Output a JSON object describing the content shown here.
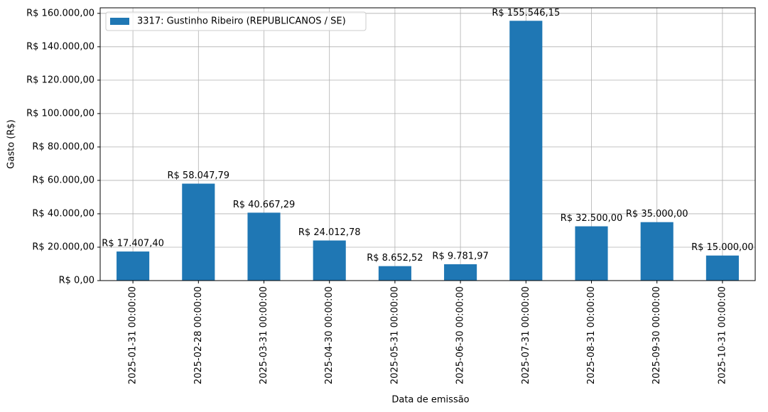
{
  "chart_data": {
    "type": "bar",
    "xlabel": "Data de emissão",
    "ylabel": "Gasto (R$)",
    "categories": [
      "2025-01-31 00:00:00",
      "2025-02-28 00:00:00",
      "2025-03-31 00:00:00",
      "2025-04-30 00:00:00",
      "2025-05-31 00:00:00",
      "2025-06-30 00:00:00",
      "2025-07-31 00:00:00",
      "2025-08-31 00:00:00",
      "2025-09-30 00:00:00",
      "2025-10-31 00:00:00"
    ],
    "series": [
      {
        "name": "3317: Gustinho Ribeiro (REPUBLICANOS / SE)",
        "color": "#1f77b4",
        "values": [
          17407.4,
          58047.79,
          40667.29,
          24012.78,
          8652.52,
          9781.97,
          155546.15,
          32500.0,
          35000.0,
          15000.0
        ],
        "value_labels": [
          "R$ 17.407,40",
          "R$ 58.047,79",
          "R$ 40.667,29",
          "R$ 24.012,78",
          "R$ 8.652,52",
          "R$ 9.781,97",
          "R$ 155.546,15",
          "R$ 32.500,00",
          "R$ 35.000,00",
          "R$ 15.000,00"
        ]
      }
    ],
    "ylim": [
      0,
      163323.46
    ],
    "yticks": [
      {
        "value": 0,
        "label": "R$ 0,00"
      },
      {
        "value": 20000,
        "label": "R$ 20.000,00"
      },
      {
        "value": 40000,
        "label": "R$ 40.000,00"
      },
      {
        "value": 60000,
        "label": "R$ 60.000,00"
      },
      {
        "value": 80000,
        "label": "R$ 80.000,00"
      },
      {
        "value": 100000,
        "label": "R$ 100.000,00"
      },
      {
        "value": 120000,
        "label": "R$ 120.000,00"
      },
      {
        "value": 140000,
        "label": "R$ 140.000,00"
      },
      {
        "value": 160000,
        "label": "R$ 160.000,00"
      }
    ],
    "grid": true,
    "legend": "upper left"
  }
}
